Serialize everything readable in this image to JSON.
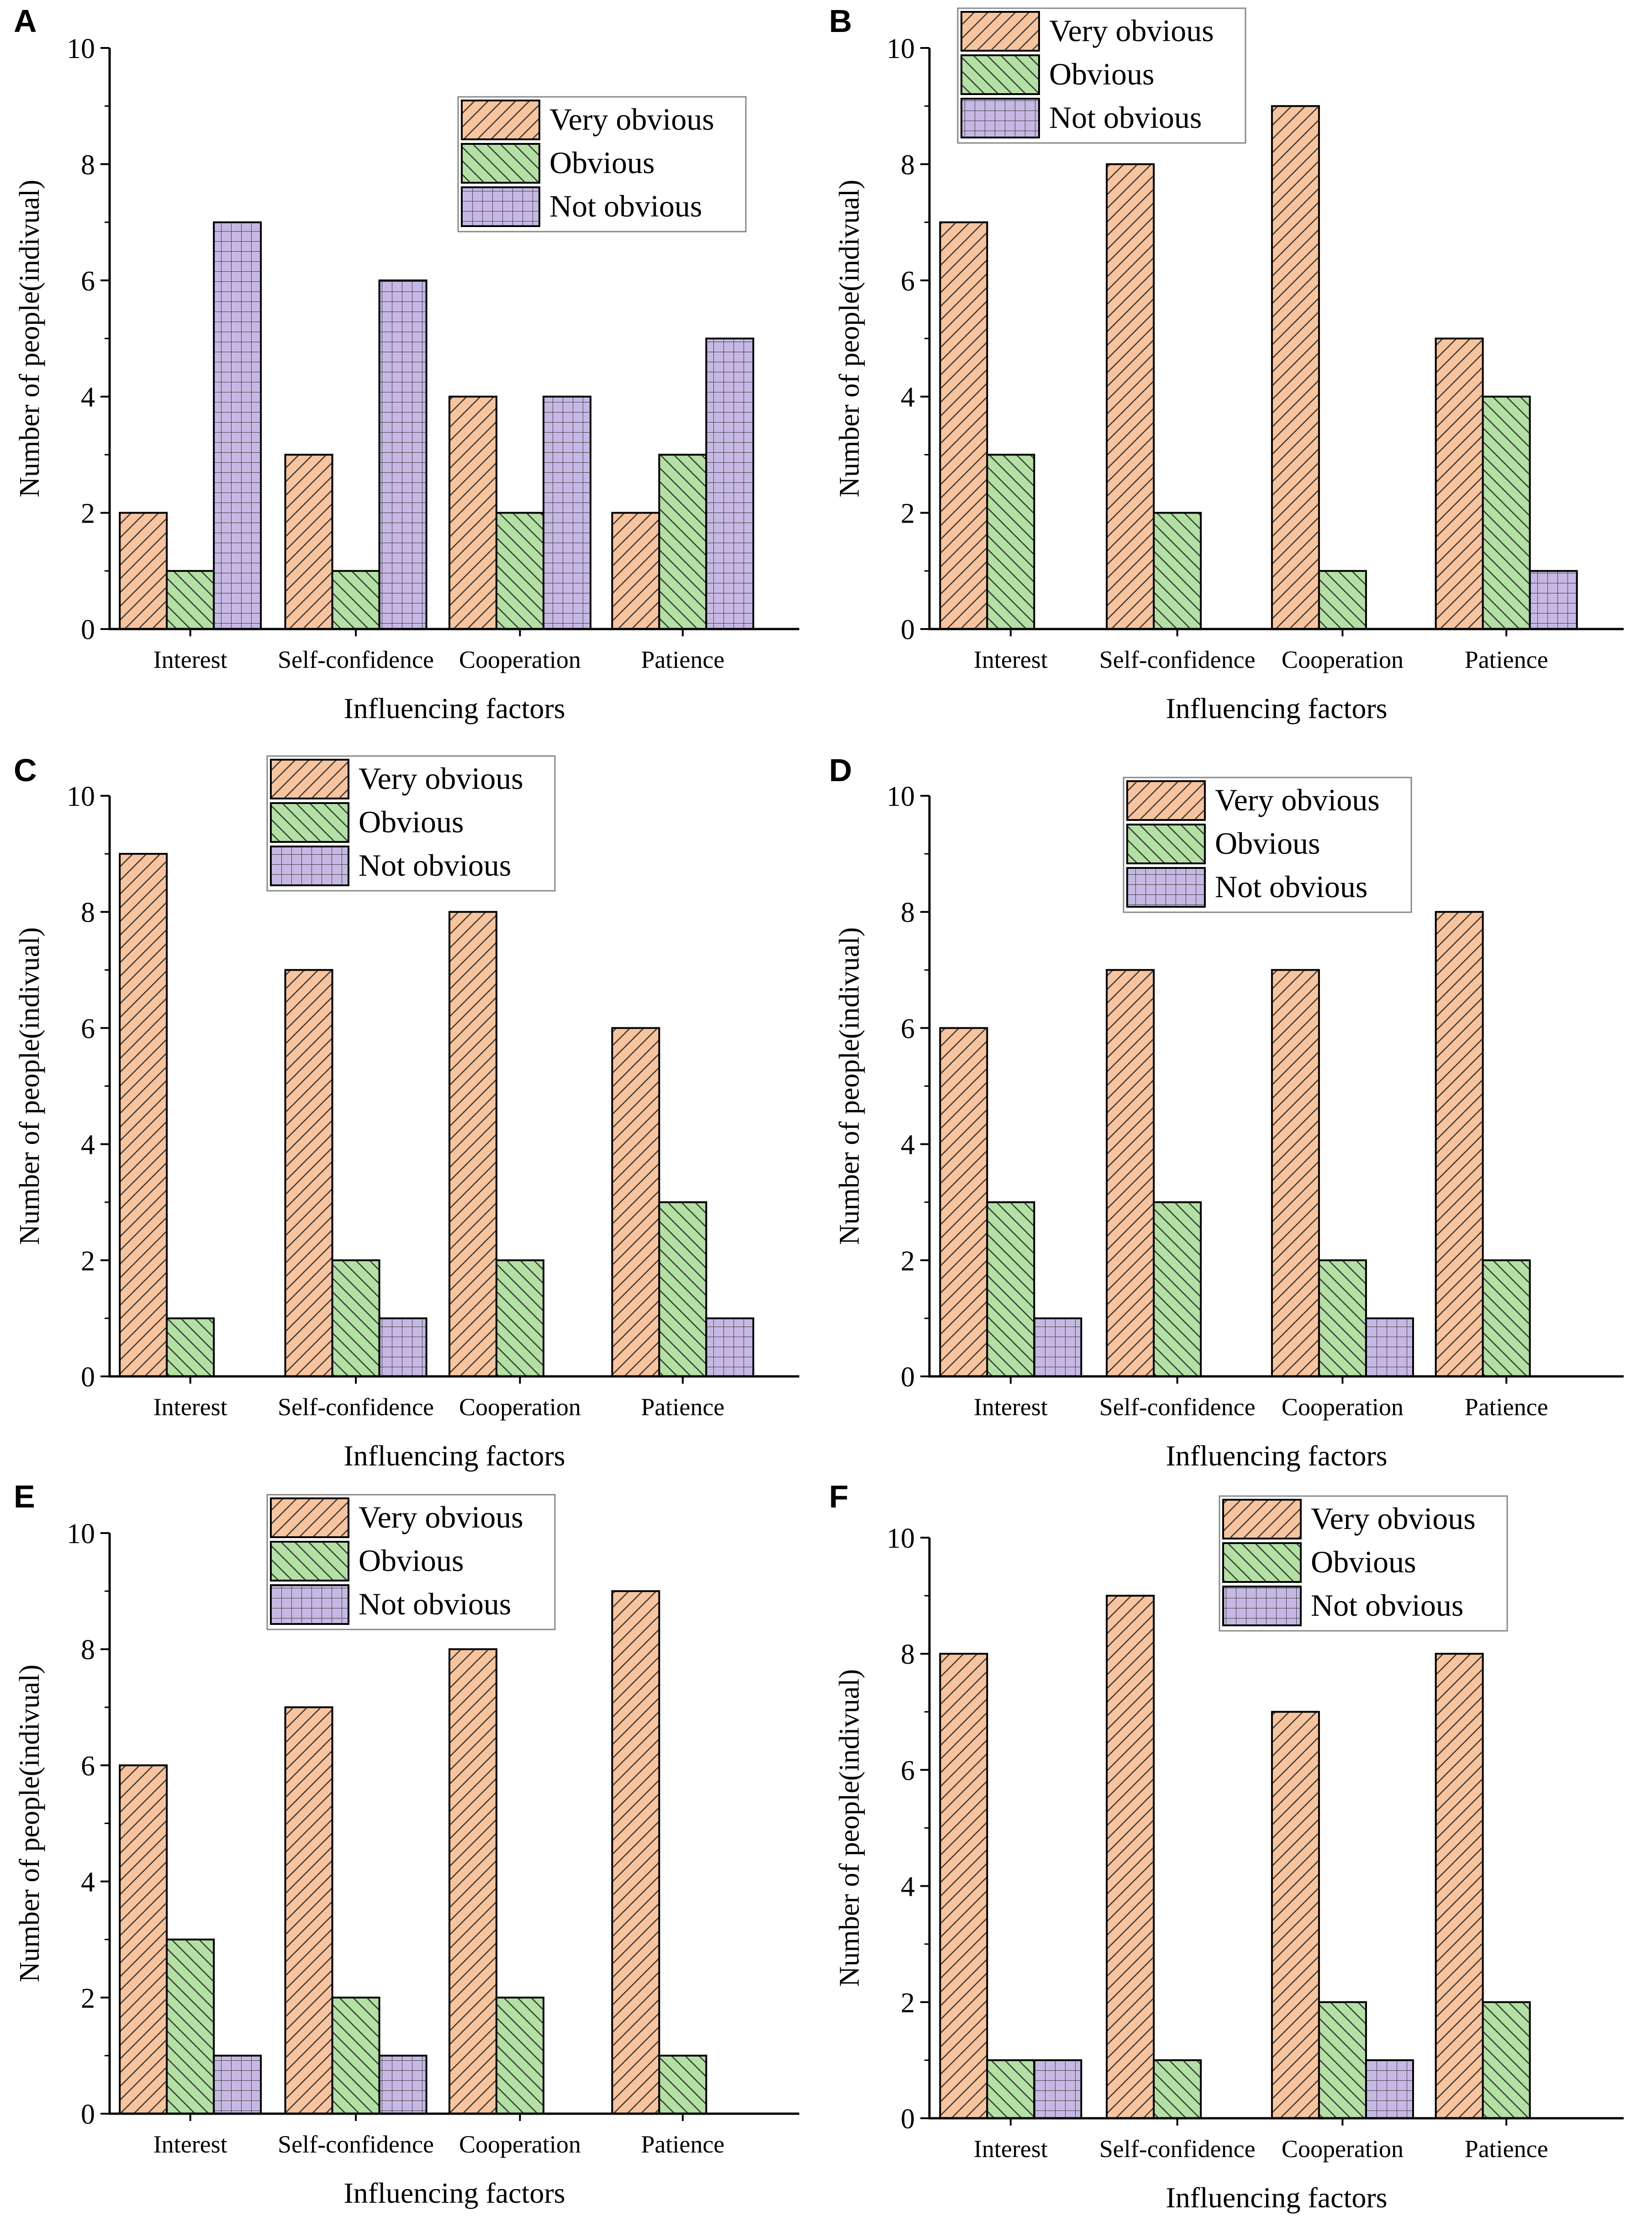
{
  "figure": {
    "colors": {
      "very_obvious": "#f8c49d",
      "obvious": "#b3e0a3",
      "not_obvious": "#c6b8e4",
      "axis": "#000000"
    }
  },
  "chart_data": [
    {
      "panel": "A",
      "type": "bar",
      "categories": [
        "Interest",
        "Self-confidence",
        "Cooperation",
        "Patience"
      ],
      "series": [
        {
          "name": "Very obvious",
          "values": [
            2,
            3,
            4,
            2
          ]
        },
        {
          "name": "Obvious",
          "values": [
            1,
            1,
            2,
            3
          ]
        },
        {
          "name": "Not obvious",
          "values": [
            7,
            6,
            4,
            5
          ]
        }
      ],
      "xlabel": "Influencing factors",
      "ylabel": "Number of people(indivual)",
      "ylim": [
        0,
        10
      ],
      "yticks": [
        "0",
        "2",
        "4",
        "6",
        "8",
        "10"
      ],
      "legend": "top-right"
    },
    {
      "panel": "B",
      "type": "bar",
      "categories": [
        "Interest",
        "Self-confidence",
        "Cooperation",
        "Patience"
      ],
      "series": [
        {
          "name": "Very obvious",
          "values": [
            7,
            8,
            9,
            5
          ]
        },
        {
          "name": "Obvious",
          "values": [
            3,
            2,
            1,
            4
          ]
        },
        {
          "name": "Not obvious",
          "values": [
            0,
            0,
            0,
            1
          ]
        }
      ],
      "xlabel": "Influencing factors",
      "ylabel": "Number of people(indivual)",
      "ylim": [
        0,
        10
      ],
      "yticks": [
        "0",
        "2",
        "4",
        "6",
        "8",
        "10"
      ],
      "legend": "top-left"
    },
    {
      "panel": "C",
      "type": "bar",
      "categories": [
        "Interest",
        "Self-confidence",
        "Cooperation",
        "Patience"
      ],
      "series": [
        {
          "name": "Very obvious",
          "values": [
            9,
            7,
            8,
            6
          ]
        },
        {
          "name": "Obvious",
          "values": [
            1,
            2,
            2,
            3
          ]
        },
        {
          "name": "Not obvious",
          "values": [
            0,
            1,
            0,
            1
          ]
        }
      ],
      "xlabel": "Influencing factors",
      "ylabel": "Number of people(indivual)",
      "ylim": [
        0,
        10
      ],
      "yticks": [
        "0",
        "2",
        "4",
        "6",
        "8",
        "10"
      ],
      "legend": "top-center"
    },
    {
      "panel": "D",
      "type": "bar",
      "categories": [
        "Interest",
        "Self-confidence",
        "Cooperation",
        "Patience"
      ],
      "series": [
        {
          "name": "Very obvious",
          "values": [
            6,
            7,
            7,
            8
          ]
        },
        {
          "name": "Obvious",
          "values": [
            3,
            3,
            2,
            2
          ]
        },
        {
          "name": "Not obvious",
          "values": [
            1,
            0,
            1,
            0
          ]
        }
      ],
      "xlabel": "Influencing factors",
      "ylabel": "Number of people(indivual)",
      "ylim": [
        0,
        10
      ],
      "yticks": [
        "0",
        "2",
        "4",
        "6",
        "8",
        "10"
      ],
      "legend": "top-center"
    },
    {
      "panel": "E",
      "type": "bar",
      "categories": [
        "Interest",
        "Self-confidence",
        "Cooperation",
        "Patience"
      ],
      "series": [
        {
          "name": "Very obvious",
          "values": [
            6,
            7,
            8,
            9
          ]
        },
        {
          "name": "Obvious",
          "values": [
            3,
            2,
            2,
            1
          ]
        },
        {
          "name": "Not obvious",
          "values": [
            1,
            1,
            0,
            0
          ]
        }
      ],
      "xlabel": "Influencing factors",
      "ylabel": "Number of people(indivual)",
      "ylim": [
        0,
        10
      ],
      "yticks": [
        "0",
        "2",
        "4",
        "6",
        "8",
        "10"
      ],
      "legend": "top-center"
    },
    {
      "panel": "F",
      "type": "bar",
      "categories": [
        "Interest",
        "Self-confidence",
        "Cooperation",
        "Patience"
      ],
      "series": [
        {
          "name": "Very obvious",
          "values": [
            8,
            9,
            7,
            8
          ]
        },
        {
          "name": "Obvious",
          "values": [
            1,
            1,
            2,
            2
          ]
        },
        {
          "name": "Not obvious",
          "values": [
            1,
            0,
            1,
            0
          ]
        }
      ],
      "xlabel": "Influencing factors",
      "ylabel": "Number of people(indivual)",
      "ylim": [
        0,
        10
      ],
      "yticks": [
        "0",
        "2",
        "4",
        "6",
        "8",
        "10"
      ],
      "legend": "top-right"
    }
  ]
}
